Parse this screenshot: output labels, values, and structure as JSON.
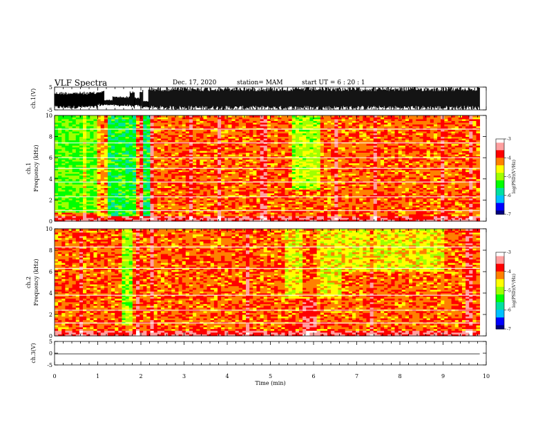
{
  "header": {
    "title": "VLF Spectra",
    "date": "Dec. 17, 2020",
    "station": "station= MAM",
    "start": "start UT = 6 : 20 : 1"
  },
  "chart_data": [
    {
      "type": "line",
      "panel": "ch.1 waveform",
      "ylabel": "ch.1(V)",
      "ylim": [
        -5,
        5
      ],
      "yticks": [
        "5",
        "-5"
      ],
      "xlim": [
        0,
        10
      ],
      "trace_color": "#000000",
      "segments": [
        {
          "x": [
            0,
            1.0
          ],
          "ymin": -4.5,
          "ymax": 3.0
        },
        {
          "x": [
            1.0,
            1.15
          ],
          "ymin": -3.5,
          "ymax": 3.5
        },
        {
          "x": [
            1.15,
            1.35
          ],
          "ymin": -3.0,
          "ymax": -0.5
        },
        {
          "x": [
            1.35,
            1.75
          ],
          "ymin": -3.5,
          "ymax": 1.0
        },
        {
          "x": [
            1.75,
            1.85
          ],
          "ymin": -4.5,
          "ymax": 3.5
        },
        {
          "x": [
            1.85,
            1.98
          ],
          "ymin": -3.5,
          "ymax": 0.5
        },
        {
          "x": [
            1.98,
            2.05
          ],
          "ymin": -4.5,
          "ymax": 4.0
        },
        {
          "x": [
            2.05,
            2.18
          ],
          "ymin": -4.0,
          "ymax": -1.0
        },
        {
          "x": [
            2.18,
            9.85
          ],
          "ymin": -5.0,
          "ymax": 5.0
        }
      ]
    },
    {
      "type": "heatmap",
      "panel": "ch.1 spectrogram",
      "ylabel": "ch.1 Frequency (kHz)",
      "xlim": [
        0,
        10
      ],
      "ylim": [
        0,
        10
      ],
      "yticks": [
        "0",
        "2",
        "4",
        "6",
        "8",
        "10"
      ],
      "data_end_min": 9.85,
      "colorbar": {
        "label": "log(PSD)(V²/Hz)",
        "range": [
          -7,
          -3
        ],
        "ticks": [
          "-3",
          "-4",
          "-5",
          "-6",
          "-7"
        ],
        "colors": [
          "#000080",
          "#0000ff",
          "#00c0ff",
          "#00e0a0",
          "#00ff00",
          "#a0ff00",
          "#ffff00",
          "#ff8000",
          "#ff0000",
          "#ffa0a0",
          "#ffffff"
        ]
      },
      "regions": [
        {
          "t": [
            0,
            0.95
          ],
          "f": [
            0.8,
            10
          ],
          "level": -5.2
        },
        {
          "t": [
            0.95,
            1.2
          ],
          "f": [
            0,
            10
          ],
          "level": -4.3
        },
        {
          "t": [
            1.2,
            1.45
          ],
          "f": [
            0.4,
            10
          ],
          "level": -5.5
        },
        {
          "t": [
            1.45,
            1.85
          ],
          "f": [
            0.5,
            10
          ],
          "level": -5.4
        },
        {
          "t": [
            1.85,
            2.0
          ],
          "f": [
            0,
            10
          ],
          "level": -4.2
        },
        {
          "t": [
            2.0,
            2.2
          ],
          "f": [
            0.5,
            10
          ],
          "level": -5.5
        },
        {
          "t": [
            5.45,
            6.15
          ],
          "f": [
            3.0,
            10
          ],
          "level": -4.9
        }
      ],
      "background_level": -4.1,
      "harmonic_lines_khz": [
        1.0,
        2.3,
        3.7,
        5.0,
        6.0,
        7.4,
        8.7
      ]
    },
    {
      "type": "heatmap",
      "panel": "ch.2 spectrogram",
      "ylabel": "ch.2 Frequency (kHz)",
      "xlim": [
        0,
        10
      ],
      "ylim": [
        0,
        10
      ],
      "yticks": [
        "0",
        "2",
        "4",
        "6",
        "8",
        "10"
      ],
      "data_end_min": 9.85,
      "colorbar": {
        "label": "log(PSD)(V²/Hz)",
        "range": [
          -7,
          -3
        ],
        "ticks": [
          "-3",
          "-4",
          "-5",
          "-6",
          "-7"
        ],
        "colors": [
          "#000080",
          "#0000ff",
          "#00c0ff",
          "#00e0a0",
          "#00ff00",
          "#a0ff00",
          "#ffff00",
          "#ff8000",
          "#ff0000",
          "#ffa0a0",
          "#ffffff"
        ]
      },
      "regions": [
        {
          "t": [
            1.55,
            1.8
          ],
          "f": [
            1.0,
            10
          ],
          "level": -5.0
        },
        {
          "t": [
            5.3,
            6.6
          ],
          "f": [
            3.5,
            10
          ],
          "level": -4.6
        },
        {
          "t": [
            6.6,
            9.0
          ],
          "f": [
            6.0,
            10
          ],
          "level": -4.6
        }
      ],
      "background_level": -4.1,
      "harmonic_lines_khz": [
        1.2,
        2.4,
        3.8,
        6.3,
        8.3
      ]
    },
    {
      "type": "line",
      "panel": "ch.3 waveform",
      "ylabel": "ch.3(V)",
      "xlabel": "Time (min)",
      "ylim": [
        -5,
        5
      ],
      "yticks": [
        "5",
        "0",
        "-5"
      ],
      "xlim": [
        0,
        10
      ],
      "xticks": [
        "0",
        "1",
        "2",
        "3",
        "4",
        "5",
        "6",
        "7",
        "8",
        "9",
        "10"
      ],
      "trace_color": "#000000",
      "x": [
        0,
        9.85
      ],
      "y": [
        -0.3,
        -0.3
      ]
    }
  ]
}
